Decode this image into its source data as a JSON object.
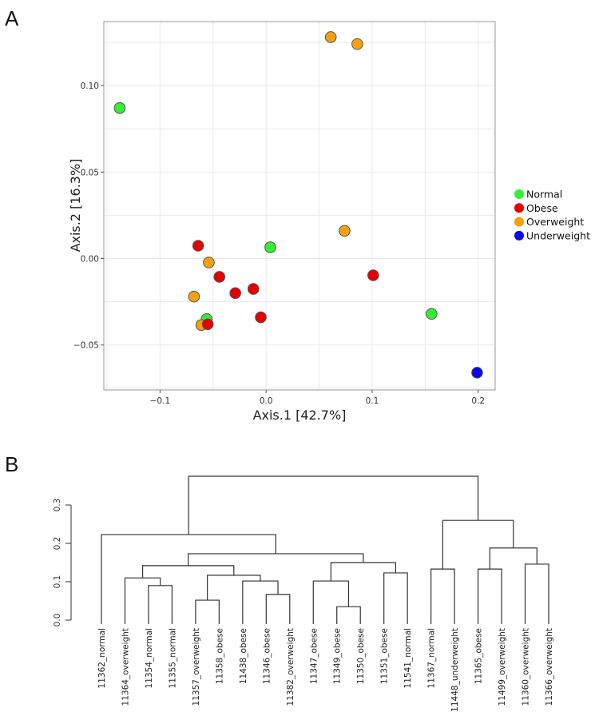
{
  "chart_data": [
    {
      "type": "scatter",
      "panel_label": "A",
      "xlabel": "Axis.1 [42.7%]",
      "ylabel": "Axis.2 [16.3%]",
      "xlim": [
        -0.153,
        0.216
      ],
      "ylim": [
        -0.076,
        0.137
      ],
      "xticks": [
        -0.1,
        0.0,
        0.1,
        0.2
      ],
      "xtick_labels": [
        "−0.1",
        "0.0",
        "0.1",
        "0.2"
      ],
      "yticks": [
        -0.05,
        0.0,
        0.05,
        0.1
      ],
      "ytick_labels": [
        "−0.05",
        "0.00",
        "0.05",
        "0.10"
      ],
      "grid": true,
      "legend_position": "right",
      "legend": [
        {
          "name": "Normal",
          "color": "#33ee33"
        },
        {
          "name": "Obese",
          "color": "#e50000"
        },
        {
          "name": "Overweight",
          "color": "#f5a00f"
        },
        {
          "name": "Underweight",
          "color": "#0a0ae0"
        }
      ],
      "points": [
        {
          "x": -0.138,
          "y": 0.087,
          "group": "Normal"
        },
        {
          "x": 0.061,
          "y": 0.128,
          "group": "Overweight"
        },
        {
          "x": 0.086,
          "y": 0.124,
          "group": "Overweight"
        },
        {
          "x": 0.004,
          "y": 0.0065,
          "group": "Normal"
        },
        {
          "x": 0.074,
          "y": 0.016,
          "group": "Overweight"
        },
        {
          "x": -0.064,
          "y": 0.0074,
          "group": "Obese"
        },
        {
          "x": -0.054,
          "y": -0.0023,
          "group": "Overweight"
        },
        {
          "x": -0.044,
          "y": -0.0106,
          "group": "Obese"
        },
        {
          "x": -0.029,
          "y": -0.02,
          "group": "Obese"
        },
        {
          "x": -0.012,
          "y": -0.0176,
          "group": "Obese"
        },
        {
          "x": 0.101,
          "y": -0.0097,
          "group": "Obese"
        },
        {
          "x": -0.068,
          "y": -0.022,
          "group": "Overweight"
        },
        {
          "x": -0.005,
          "y": -0.034,
          "group": "Obese"
        },
        {
          "x": -0.056,
          "y": -0.035,
          "group": "Normal"
        },
        {
          "x": -0.061,
          "y": -0.0385,
          "group": "Overweight"
        },
        {
          "x": -0.055,
          "y": -0.038,
          "group": "Obese"
        },
        {
          "x": 0.156,
          "y": -0.032,
          "group": "Normal"
        },
        {
          "x": 0.199,
          "y": -0.066,
          "group": "Underweight"
        }
      ]
    },
    {
      "type": "dendrogram",
      "panel_label": "B",
      "ylim": [
        0,
        0.3
      ],
      "yticks": [
        0.0,
        0.1,
        0.2,
        0.3
      ],
      "ytick_labels": [
        "0.0",
        "0.1",
        "0.2",
        "0.3"
      ],
      "leaves": [
        "11362_normal",
        "11364_overweight",
        "11354_normal",
        "11355_normal",
        "11357_overweight",
        "11358_obese",
        "11438_obese",
        "11346_obese",
        "11382_overweight",
        "11347_obese",
        "11349_obese",
        "11350_obese",
        "11351_obese",
        "11541_normal",
        "11367_normal",
        "11448_underweight",
        "11365_obese",
        "11499_overweight",
        "11360_overweight",
        "11366_overweight"
      ],
      "tree": {
        "h": 0.375,
        "c": [
          {
            "h": 0.223,
            "c": [
              0,
              {
                "h": 0.173,
                "c": [
                  {
                    "h": 0.142,
                    "c": [
                      {
                        "h": 0.11,
                        "c": [
                          1,
                          {
                            "h": 0.09,
                            "c": [
                              2,
                              3
                            ]
                          }
                        ]
                      },
                      {
                        "h": 0.117,
                        "c": [
                          {
                            "h": 0.052,
                            "c": [
                              4,
                              5
                            ]
                          },
                          {
                            "h": 0.102,
                            "c": [
                              6,
                              {
                                "h": 0.067,
                                "c": [
                                  7,
                                  8
                                ]
                              }
                            ]
                          }
                        ]
                      }
                    ]
                  },
                  {
                    "h": 0.15,
                    "c": [
                      {
                        "h": 0.102,
                        "c": [
                          9,
                          {
                            "h": 0.035,
                            "c": [
                              10,
                              11
                            ]
                          }
                        ]
                      },
                      {
                        "h": 0.123,
                        "c": [
                          12,
                          13
                        ]
                      }
                    ]
                  }
                ]
              }
            ]
          },
          {
            "h": 0.26,
            "c": [
              {
                "h": 0.133,
                "c": [
                  14,
                  15
                ]
              },
              {
                "h": 0.188,
                "c": [
                  {
                    "h": 0.133,
                    "c": [
                      16,
                      17
                    ]
                  },
                  {
                    "h": 0.146,
                    "c": [
                      18,
                      19
                    ]
                  }
                ]
              }
            ]
          }
        ]
      }
    }
  ]
}
